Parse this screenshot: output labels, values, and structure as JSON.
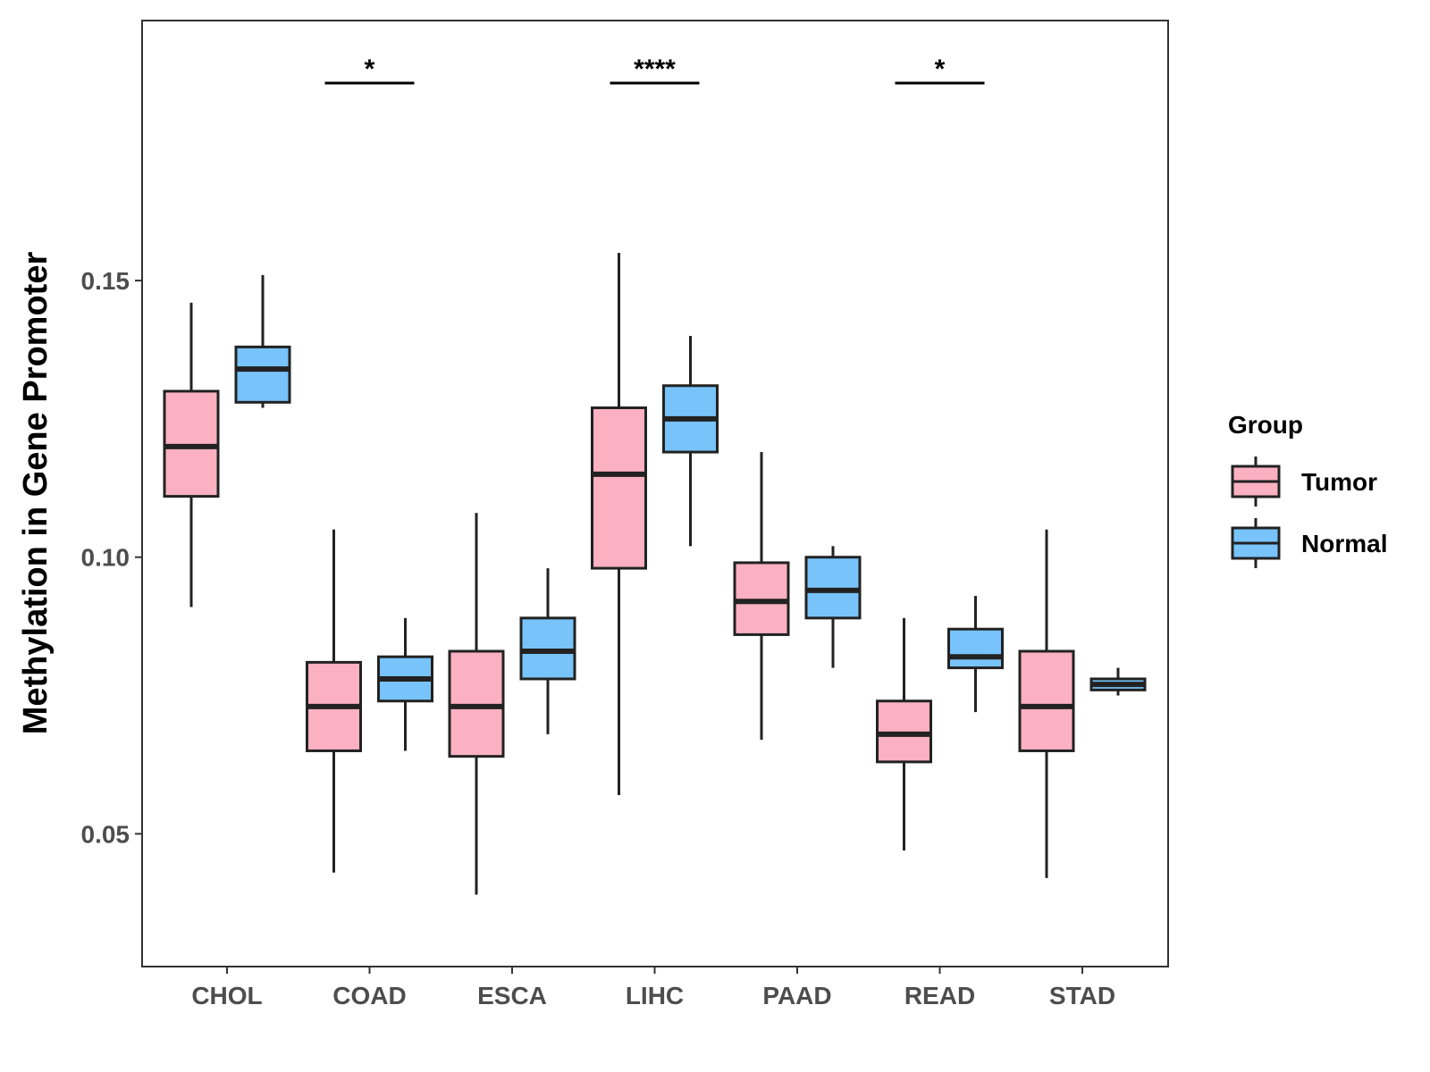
{
  "chart_data": {
    "type": "boxplot",
    "title": "",
    "xlabel": "",
    "ylabel": "Methylation in Gene Promoter",
    "ylim": [
      0.026,
      0.197
    ],
    "yticks": [
      0.05,
      0.1,
      0.15
    ],
    "ytick_labels": [
      "0.05",
      "0.10",
      "0.15"
    ],
    "categories": [
      "CHOL",
      "COAD",
      "ESCA",
      "LIHC",
      "PAAD",
      "READ",
      "STAD"
    ],
    "legend": {
      "title": "Group",
      "position": "right",
      "entries": [
        {
          "name": "Tumor",
          "color": "#FBB1C1"
        },
        {
          "name": "Normal",
          "color": "#78C3F9"
        }
      ]
    },
    "series": [
      {
        "name": "Tumor",
        "color": "#FBB1C1",
        "boxes": [
          {
            "category": "CHOL",
            "whisker_low": 0.091,
            "q1": 0.111,
            "median": 0.12,
            "q3": 0.13,
            "whisker_high": 0.146
          },
          {
            "category": "COAD",
            "whisker_low": 0.043,
            "q1": 0.065,
            "median": 0.073,
            "q3": 0.081,
            "whisker_high": 0.105
          },
          {
            "category": "ESCA",
            "whisker_low": 0.039,
            "q1": 0.064,
            "median": 0.073,
            "q3": 0.083,
            "whisker_high": 0.108
          },
          {
            "category": "LIHC",
            "whisker_low": 0.057,
            "q1": 0.098,
            "median": 0.115,
            "q3": 0.127,
            "whisker_high": 0.155
          },
          {
            "category": "PAAD",
            "whisker_low": 0.067,
            "q1": 0.086,
            "median": 0.092,
            "q3": 0.099,
            "whisker_high": 0.119
          },
          {
            "category": "READ",
            "whisker_low": 0.047,
            "q1": 0.063,
            "median": 0.068,
            "q3": 0.074,
            "whisker_high": 0.089
          },
          {
            "category": "STAD",
            "whisker_low": 0.042,
            "q1": 0.065,
            "median": 0.073,
            "q3": 0.083,
            "whisker_high": 0.105
          }
        ]
      },
      {
        "name": "Normal",
        "color": "#78C3F9",
        "boxes": [
          {
            "category": "CHOL",
            "whisker_low": 0.127,
            "q1": 0.128,
            "median": 0.134,
            "q3": 0.138,
            "whisker_high": 0.151
          },
          {
            "category": "COAD",
            "whisker_low": 0.065,
            "q1": 0.074,
            "median": 0.078,
            "q3": 0.082,
            "whisker_high": 0.089
          },
          {
            "category": "ESCA",
            "whisker_low": 0.068,
            "q1": 0.078,
            "median": 0.083,
            "q3": 0.089,
            "whisker_high": 0.098
          },
          {
            "category": "LIHC",
            "whisker_low": 0.102,
            "q1": 0.119,
            "median": 0.125,
            "q3": 0.131,
            "whisker_high": 0.14
          },
          {
            "category": "PAAD",
            "whisker_low": 0.08,
            "q1": 0.089,
            "median": 0.094,
            "q3": 0.1,
            "whisker_high": 0.102
          },
          {
            "category": "READ",
            "whisker_low": 0.072,
            "q1": 0.08,
            "median": 0.082,
            "q3": 0.087,
            "whisker_high": 0.093
          },
          {
            "category": "STAD",
            "whisker_low": 0.075,
            "q1": 0.076,
            "median": 0.077,
            "q3": 0.078,
            "whisker_high": 0.08
          }
        ]
      }
    ],
    "annotations": [
      {
        "category": "COAD",
        "label": "*"
      },
      {
        "category": "LIHC",
        "label": "****"
      },
      {
        "category": "READ",
        "label": "*"
      }
    ]
  }
}
